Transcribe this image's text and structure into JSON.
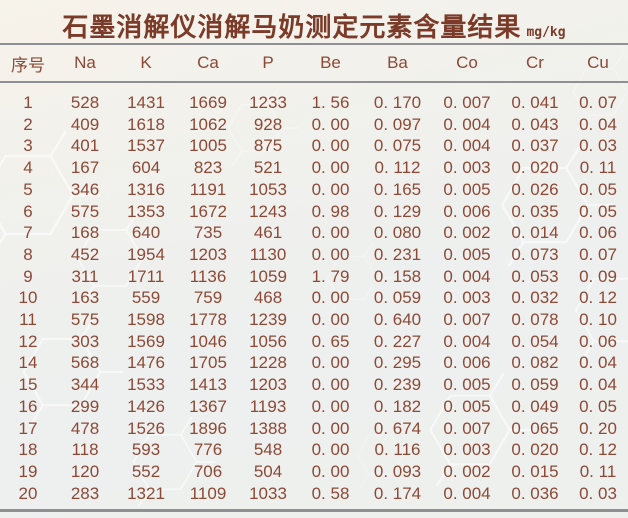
{
  "chart_data": {
    "type": "table",
    "title": "石墨消解仪消解马奶测定元素含量结果",
    "unit": "mg/kg",
    "columns": [
      "序号",
      "Na",
      "K",
      "Ca",
      "P",
      "Be",
      "Ba",
      "Co",
      "Cr",
      "Cu"
    ],
    "rows": [
      [
        "1",
        "528",
        "1431",
        "1669",
        "1233",
        "1. 56",
        "0. 170",
        "0. 007",
        "0. 041",
        "0. 07"
      ],
      [
        "2",
        "409",
        "1618",
        "1062",
        "928",
        "0. 00",
        "0. 097",
        "0. 004",
        "0. 043",
        "0. 04"
      ],
      [
        "3",
        "401",
        "1537",
        "1005",
        "875",
        "0. 00",
        "0. 075",
        "0. 004",
        "0. 037",
        "0. 03"
      ],
      [
        "4",
        "167",
        "604",
        "823",
        "521",
        "0. 00",
        "0. 112",
        "0. 003",
        "0. 020",
        "0. 11"
      ],
      [
        "5",
        "346",
        "1316",
        "1191",
        "1053",
        "0. 00",
        "0. 165",
        "0. 005",
        "0. 026",
        "0. 05"
      ],
      [
        "6",
        "575",
        "1353",
        "1672",
        "1243",
        "0. 98",
        "0. 129",
        "0. 006",
        "0. 035",
        "0. 05"
      ],
      [
        "7",
        "168",
        "640",
        "735",
        "461",
        "0. 00",
        "0. 080",
        "0. 002",
        "0. 014",
        "0. 06"
      ],
      [
        "8",
        "452",
        "1954",
        "1203",
        "1130",
        "0. 00",
        "0. 231",
        "0. 005",
        "0. 073",
        "0. 07"
      ],
      [
        "9",
        "311",
        "1711",
        "1136",
        "1059",
        "1. 79",
        "0. 158",
        "0. 004",
        "0. 053",
        "0. 09"
      ],
      [
        "10",
        "163",
        "559",
        "759",
        "468",
        "0. 00",
        "0. 059",
        "0. 003",
        "0. 032",
        "0. 12"
      ],
      [
        "11",
        "575",
        "1598",
        "1778",
        "1239",
        "0. 00",
        "0. 640",
        "0. 007",
        "0. 078",
        "0. 10"
      ],
      [
        "12",
        "303",
        "1569",
        "1046",
        "1056",
        "0. 65",
        "0. 227",
        "0. 004",
        "0. 054",
        "0. 06"
      ],
      [
        "14",
        "568",
        "1476",
        "1705",
        "1228",
        "0. 00",
        "0. 295",
        "0. 006",
        "0. 082",
        "0. 04"
      ],
      [
        "15",
        "344",
        "1533",
        "1413",
        "1203",
        "0. 00",
        "0. 239",
        "0. 005",
        "0. 059",
        "0. 04"
      ],
      [
        "16",
        "299",
        "1426",
        "1367",
        "1193",
        "0. 00",
        "0. 182",
        "0. 005",
        "0. 049",
        "0. 05"
      ],
      [
        "17",
        "478",
        "1526",
        "1896",
        "1388",
        "0. 00",
        "0. 674",
        "0. 007",
        "0. 065",
        "0. 20"
      ],
      [
        "18",
        "118",
        "593",
        "776",
        "548",
        "0. 00",
        "0. 116",
        "0. 003",
        "0. 020",
        "0. 12"
      ],
      [
        "19",
        "120",
        "552",
        "706",
        "504",
        "0. 00",
        "0. 093",
        "0. 002",
        "0. 015",
        "0. 11"
      ],
      [
        "20",
        "283",
        "1321",
        "1109",
        "1033",
        "0. 58",
        "0. 174",
        "0. 004",
        "0. 036",
        "0. 03"
      ]
    ],
    "layout_hints": {
      "style": "three-line-table",
      "note": "row 13 is absent; decimals rendered with a space after the point"
    }
  },
  "colors": {
    "title": "#7b3b28",
    "text": "#8d4936",
    "rule": "#8f9092",
    "background_top": "#f7f3ea",
    "background_bottom": "#eef0ee",
    "watermark": "#ffffff"
  }
}
